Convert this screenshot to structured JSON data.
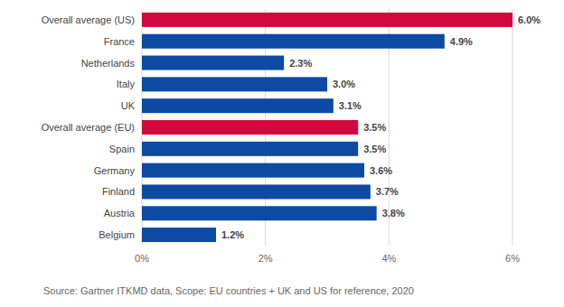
{
  "chart_data": {
    "type": "bar",
    "orientation": "horizontal",
    "categories": [
      "Overall average (US)",
      "France",
      "Netherlands",
      "Italy",
      "UK",
      "Overall average (EU)",
      "Spain",
      "Germany",
      "Finland",
      "Austria",
      "Belgium"
    ],
    "values": [
      6.0,
      4.9,
      2.3,
      3.0,
      3.1,
      3.5,
      3.5,
      3.6,
      3.7,
      3.8,
      1.2
    ],
    "value_labels": [
      "6.0%",
      "4.9%",
      "2.3%",
      "3.0%",
      "3.1%",
      "3.5%",
      "3.5%",
      "3.6%",
      "3.7%",
      "3.8%",
      "1.2%"
    ],
    "colors": [
      "#d3083f",
      "#0c4aa3",
      "#0c4aa3",
      "#0c4aa3",
      "#0c4aa3",
      "#d3083f",
      "#0c4aa3",
      "#0c4aa3",
      "#0c4aa3",
      "#0c4aa3",
      "#0c4aa3"
    ],
    "data_labels": true,
    "xlim": [
      0,
      6
    ],
    "xticks": [
      {
        "value": 0,
        "label": "0%"
      },
      {
        "value": 2,
        "label": "2%"
      },
      {
        "value": 4,
        "label": "4%"
      },
      {
        "value": 6,
        "label": "6%"
      }
    ],
    "grid": true,
    "annotations": [
      "Source: Gartner ITKMD data, Scope: EU countries + UK and US for reference, 2020"
    ]
  }
}
